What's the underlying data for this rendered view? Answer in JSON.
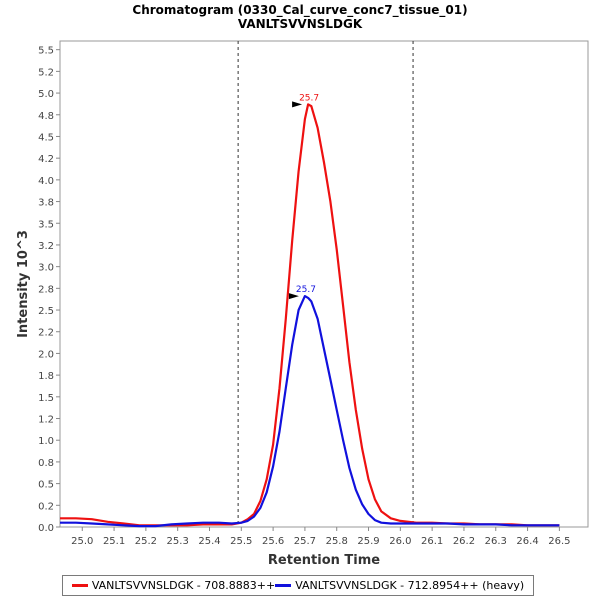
{
  "chart_data": {
    "type": "line",
    "title": "Chromatogram (0330_Cal_curve_conc7_tissue_01)",
    "subtitle": "VANLTSVVNSLDGK",
    "xlabel": "Retention Time",
    "ylabel": "Intensity 10^3",
    "xlim": [
      24.93,
      26.59
    ],
    "ylim": [
      0,
      5.6
    ],
    "xticks": [
      25.0,
      25.1,
      25.2,
      25.3,
      25.4,
      25.5,
      25.6,
      25.7,
      25.8,
      25.9,
      26.0,
      26.1,
      26.2,
      26.3,
      26.4,
      26.5
    ],
    "yticks": [
      0.0,
      0.2,
      0.5,
      0.8,
      1.0,
      1.2,
      1.5,
      1.8,
      2.0,
      2.2,
      2.5,
      2.8,
      3.0,
      3.2,
      3.5,
      3.8,
      4.0,
      4.2,
      4.5,
      4.8,
      5.0,
      5.2,
      5.5
    ],
    "ytick_values": [
      0,
      0.25,
      0.5,
      0.75,
      1.0,
      1.25,
      1.5,
      1.75,
      2.0,
      2.25,
      2.5,
      2.75,
      3.0,
      3.25,
      3.5,
      3.75,
      4.0,
      4.25,
      4.5,
      4.75,
      5.0,
      5.25,
      5.5
    ],
    "integration_bounds": [
      25.49,
      26.04
    ],
    "grid": false,
    "legend": "bottom",
    "series": [
      {
        "name": "VANLTSVVNSLDGK - 708.8883++",
        "color": "#ee1111",
        "peak_label": "25.7",
        "peak": [
          25.71,
          4.87
        ],
        "x": [
          24.93,
          24.98,
          25.03,
          25.08,
          25.13,
          25.18,
          25.23,
          25.28,
          25.33,
          25.38,
          25.43,
          25.47,
          25.5,
          25.52,
          25.54,
          25.56,
          25.58,
          25.6,
          25.62,
          25.64,
          25.66,
          25.68,
          25.7,
          25.71,
          25.72,
          25.74,
          25.76,
          25.78,
          25.8,
          25.82,
          25.84,
          25.86,
          25.88,
          25.9,
          25.92,
          25.94,
          25.97,
          26.0,
          26.05,
          26.1,
          26.15,
          26.2,
          26.25,
          26.3,
          26.35,
          26.4,
          26.45,
          26.5
        ],
        "y": [
          0.1,
          0.1,
          0.09,
          0.06,
          0.04,
          0.02,
          0.02,
          0.02,
          0.02,
          0.03,
          0.03,
          0.03,
          0.05,
          0.09,
          0.15,
          0.3,
          0.55,
          0.95,
          1.6,
          2.4,
          3.3,
          4.1,
          4.7,
          4.87,
          4.85,
          4.6,
          4.2,
          3.75,
          3.2,
          2.55,
          1.9,
          1.35,
          0.9,
          0.55,
          0.32,
          0.18,
          0.1,
          0.07,
          0.05,
          0.05,
          0.04,
          0.04,
          0.03,
          0.03,
          0.03,
          0.02,
          0.02,
          0.02
        ]
      },
      {
        "name": "VANLTSVVNSLDGK - 712.8954++ (heavy)",
        "color": "#1111dd",
        "peak_label": "25.7",
        "peak": [
          25.7,
          2.66
        ],
        "x": [
          24.93,
          24.98,
          25.03,
          25.08,
          25.13,
          25.18,
          25.23,
          25.28,
          25.33,
          25.38,
          25.43,
          25.47,
          25.5,
          25.52,
          25.54,
          25.56,
          25.58,
          25.6,
          25.62,
          25.64,
          25.66,
          25.68,
          25.7,
          25.71,
          25.72,
          25.74,
          25.76,
          25.78,
          25.8,
          25.82,
          25.84,
          25.86,
          25.88,
          25.9,
          25.92,
          25.94,
          25.97,
          26.0,
          26.05,
          26.1,
          26.15,
          26.2,
          26.25,
          26.3,
          26.35,
          26.4,
          26.45,
          26.5
        ],
        "y": [
          0.05,
          0.05,
          0.04,
          0.03,
          0.02,
          0.01,
          0.01,
          0.03,
          0.04,
          0.05,
          0.05,
          0.04,
          0.05,
          0.07,
          0.12,
          0.22,
          0.4,
          0.7,
          1.1,
          1.6,
          2.1,
          2.5,
          2.66,
          2.64,
          2.6,
          2.4,
          2.05,
          1.7,
          1.35,
          1.0,
          0.68,
          0.43,
          0.26,
          0.15,
          0.08,
          0.05,
          0.04,
          0.04,
          0.04,
          0.04,
          0.04,
          0.03,
          0.03,
          0.03,
          0.02,
          0.02,
          0.02,
          0.02
        ]
      }
    ]
  }
}
